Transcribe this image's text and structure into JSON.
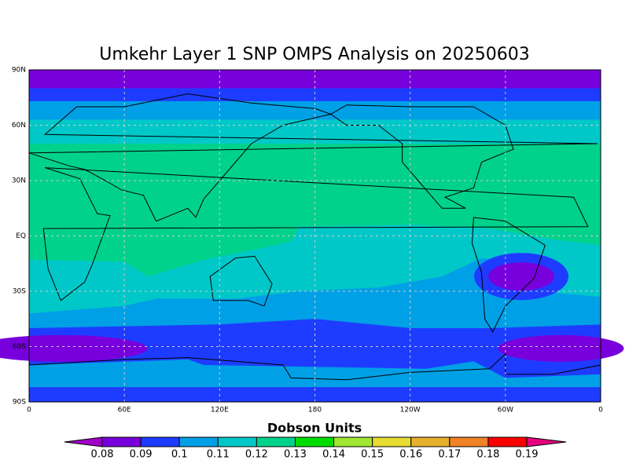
{
  "title": "Umkehr Layer 1 SNP OMPS Analysis on 20250603",
  "lat_labels": [
    "90N",
    "60N",
    "30N",
    "EQ",
    "30S",
    "60S",
    "90S"
  ],
  "lon_labels": [
    "0",
    "60E",
    "120E",
    "180",
    "120W",
    "60W",
    "0"
  ],
  "colorbar": {
    "title": "Dobson Units",
    "levels": [
      0.08,
      0.09,
      0.1,
      0.11,
      0.12,
      0.13,
      0.14,
      0.15,
      0.16,
      0.17,
      0.18,
      0.19
    ],
    "colors": [
      "#a000c8",
      "#7800dc",
      "#1e3cff",
      "#00a0e6",
      "#00c8c8",
      "#00d28c",
      "#00dc00",
      "#a0e632",
      "#e6dc32",
      "#e6af2d",
      "#f08228",
      "#fa0000",
      "#e6007d"
    ]
  }
}
